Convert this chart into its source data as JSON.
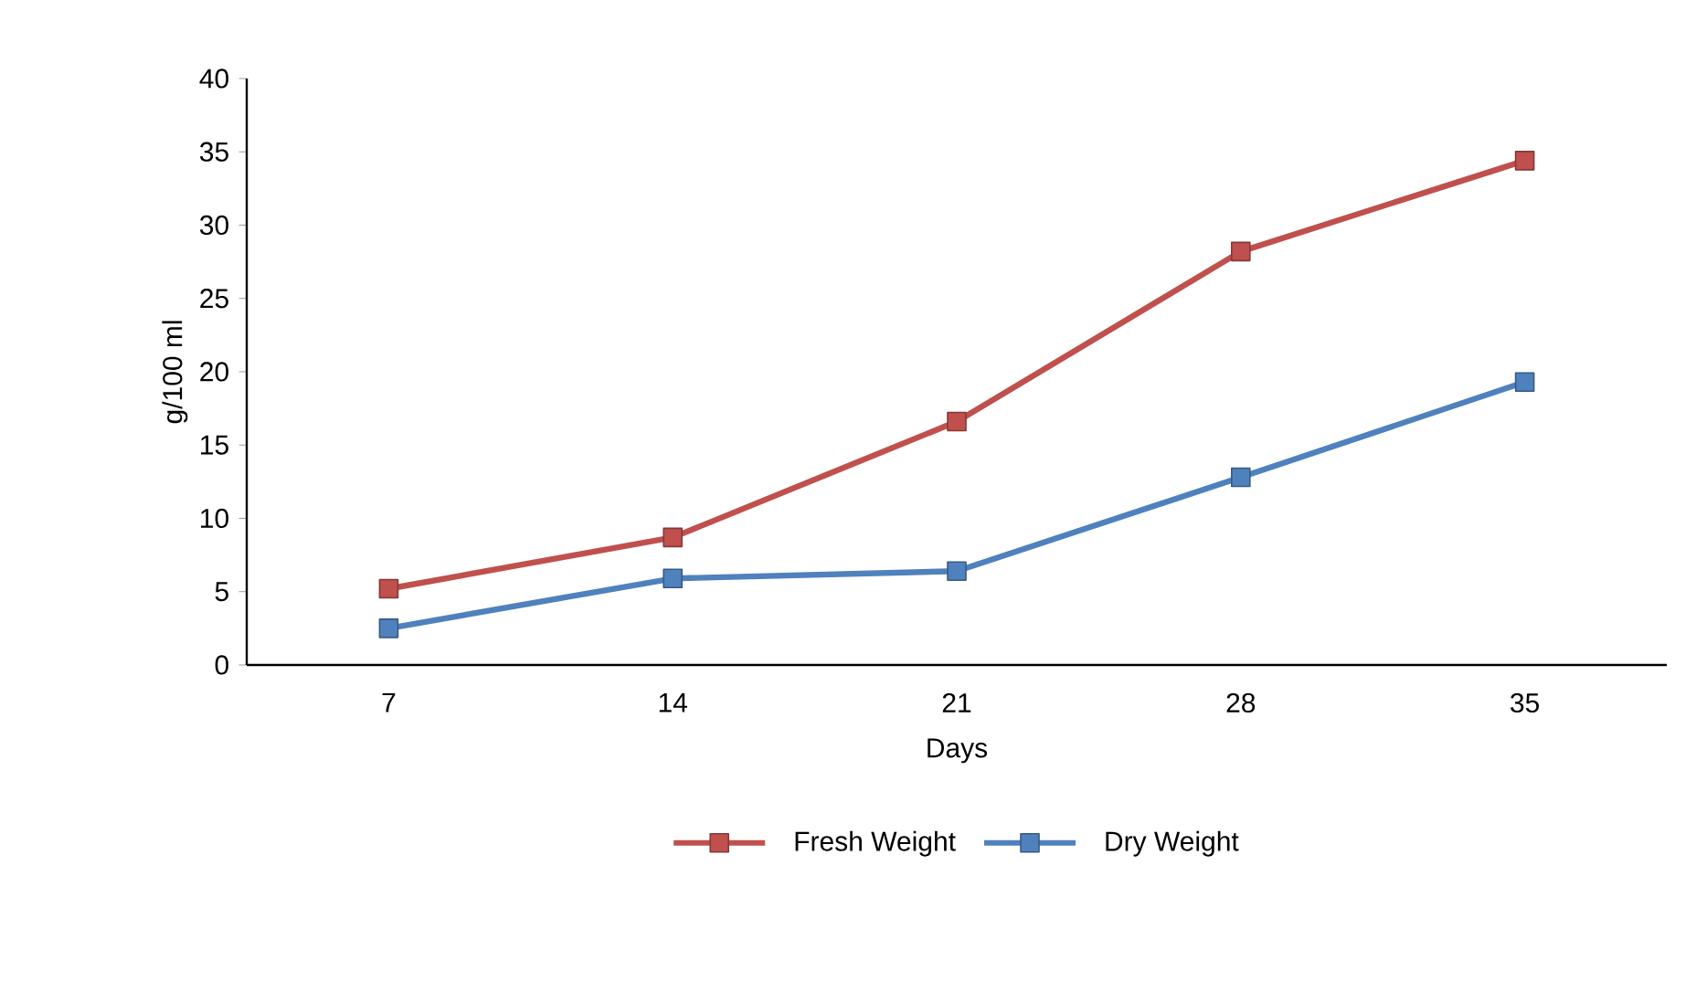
{
  "chart_data": {
    "type": "line",
    "xlabel": "Days",
    "ylabel": "g/100 ml",
    "categories": [
      "7",
      "14",
      "21",
      "28",
      "35"
    ],
    "series": [
      {
        "name": "Fresh Weight",
        "color": "#c0504d",
        "values": [
          5.2,
          8.7,
          16.6,
          28.2,
          34.4
        ]
      },
      {
        "name": "Dry Weight",
        "color": "#4f81bd",
        "values": [
          2.5,
          5.9,
          6.4,
          12.8,
          19.3
        ]
      }
    ],
    "ylim": [
      0,
      40
    ],
    "yticks": [
      0,
      5,
      10,
      15,
      20,
      25,
      30,
      35,
      40
    ],
    "marker": "square",
    "legend": "bottom"
  }
}
